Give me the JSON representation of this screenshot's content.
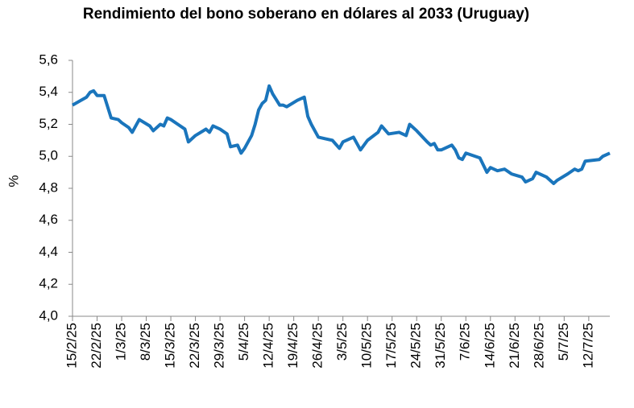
{
  "chart_data": {
    "type": "line",
    "title": "Rendimiento del bono soberano en dólares al 2033 (Uruguay)",
    "y_label": "%",
    "x": [
      "15/2/25",
      "19/2/25",
      "20/2/25",
      "21/2/25",
      "22/2/25",
      "24/2/25",
      "26/2/25",
      "28/2/25",
      "1/3/25",
      "3/3/25",
      "4/3/25",
      "6/3/25",
      "9/3/25",
      "10/3/25",
      "12/3/25",
      "13/3/25",
      "14/3/25",
      "15/3/25",
      "17/3/25",
      "19/3/25",
      "20/3/25",
      "22/3/25",
      "25/3/25",
      "26/3/25",
      "27/3/25",
      "29/3/25",
      "31/3/25",
      "1/4/25",
      "3/4/25",
      "4/4/25",
      "5/4/25",
      "7/4/25",
      "8/4/25",
      "9/4/25",
      "10/4/25",
      "11/4/25",
      "12/4/25",
      "13/4/25",
      "15/4/25",
      "16/4/25",
      "17/4/25",
      "20/4/25",
      "22/4/25",
      "23/4/25",
      "24/4/25",
      "26/4/25",
      "28/4/25",
      "30/4/25",
      "2/5/25",
      "3/5/25",
      "6/5/25",
      "8/5/25",
      "10/5/25",
      "13/5/25",
      "14/5/25",
      "16/5/25",
      "19/5/25",
      "21/5/25",
      "22/5/25",
      "24/5/25",
      "27/5/25",
      "28/5/25",
      "29/5/25",
      "30/5/25",
      "31/5/25",
      "2/6/25",
      "3/6/25",
      "4/6/25",
      "5/6/25",
      "6/6/25",
      "7/6/25",
      "11/6/25",
      "13/6/25",
      "14/6/25",
      "16/6/25",
      "18/6/25",
      "20/6/25",
      "23/6/25",
      "24/6/25",
      "26/6/25",
      "27/6/25",
      "30/6/25",
      "2/7/25",
      "3/7/25",
      "6/7/25",
      "8/7/25",
      "9/7/25",
      "10/7/25",
      "11/7/25",
      "15/7/25",
      "16/7/25",
      "18/7/25"
    ],
    "series": [
      {
        "color": "#1a75bc",
        "values": [
          5.32,
          5.37,
          5.4,
          5.41,
          5.38,
          5.38,
          5.24,
          5.23,
          5.21,
          5.18,
          5.15,
          5.23,
          5.19,
          5.16,
          5.2,
          5.19,
          5.24,
          5.23,
          5.2,
          5.17,
          5.09,
          5.13,
          5.17,
          5.15,
          5.19,
          5.17,
          5.14,
          5.06,
          5.07,
          5.02,
          5.05,
          5.13,
          5.2,
          5.29,
          5.33,
          5.35,
          5.44,
          5.39,
          5.32,
          5.32,
          5.31,
          5.35,
          5.37,
          5.25,
          5.2,
          5.12,
          5.11,
          5.1,
          5.05,
          5.09,
          5.12,
          5.04,
          5.1,
          5.15,
          5.19,
          5.14,
          5.15,
          5.13,
          5.2,
          5.16,
          5.09,
          5.07,
          5.08,
          5.04,
          5.04,
          5.06,
          5.07,
          5.04,
          4.99,
          4.98,
          5.02,
          4.99,
          4.9,
          4.93,
          4.91,
          4.92,
          4.89,
          4.87,
          4.84,
          4.86,
          4.9,
          4.87,
          4.83,
          4.85,
          4.89,
          4.92,
          4.91,
          4.92,
          4.97,
          4.98,
          5.0,
          5.02
        ]
      }
    ],
    "xlim": [
      "15/2/25",
      "18/7/25"
    ],
    "xticks": [
      "15/2/25",
      "22/2/25",
      "1/3/25",
      "8/3/25",
      "15/3/25",
      "22/3/25",
      "29/3/25",
      "5/4/25",
      "12/4/25",
      "19/4/25",
      "26/4/25",
      "3/5/25",
      "10/5/25",
      "17/5/25",
      "24/5/25",
      "31/5/25",
      "7/6/25",
      "14/6/25",
      "21/6/25",
      "28/6/25",
      "5/7/25",
      "12/7/25"
    ],
    "ylim": [
      4.0,
      5.6
    ],
    "yticks": [
      {
        "value": 4.0,
        "label": "4,0"
      },
      {
        "value": 4.2,
        "label": "4,2"
      },
      {
        "value": 4.4,
        "label": "4,4"
      },
      {
        "value": 4.6,
        "label": "4,6"
      },
      {
        "value": 4.8,
        "label": "4,8"
      },
      {
        "value": 5.0,
        "label": "5,0"
      },
      {
        "value": 5.2,
        "label": "5,2"
      },
      {
        "value": 5.4,
        "label": "5,4"
      },
      {
        "value": 5.6,
        "label": "5,6"
      }
    ],
    "grid": false
  }
}
